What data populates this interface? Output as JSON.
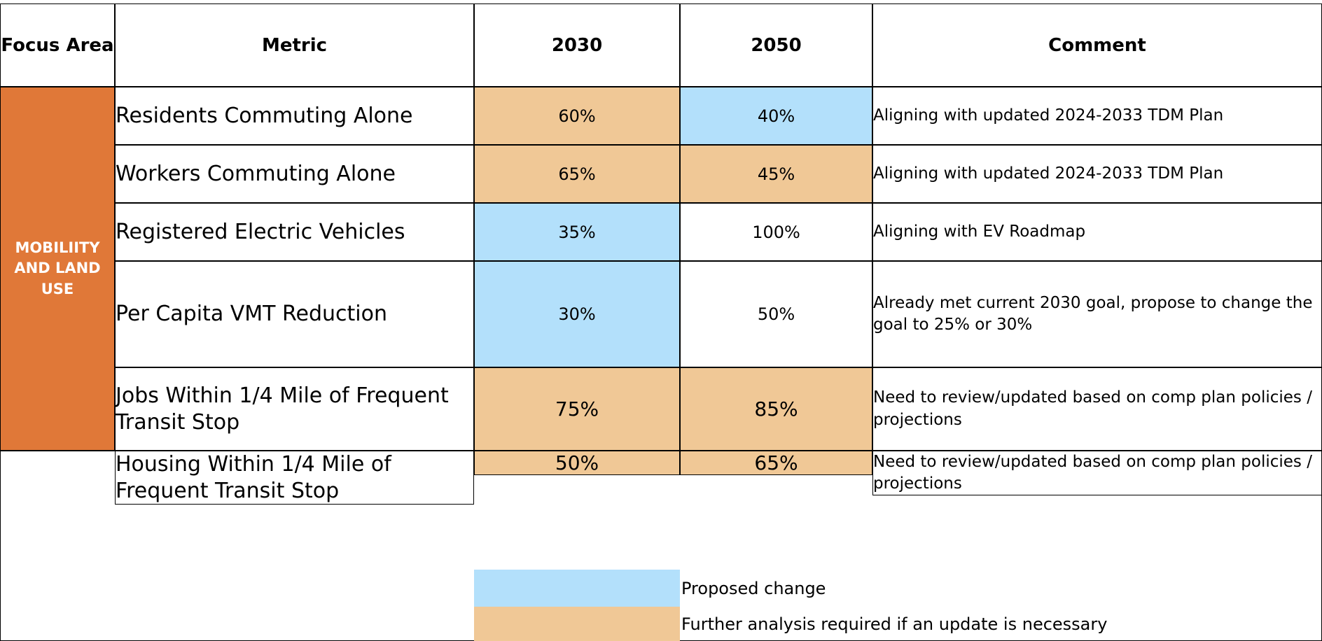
{
  "table": {
    "headers": [
      "Focus Area",
      "Metric",
      "2030",
      "2050",
      "Comment"
    ],
    "focus_area": "MOBILIITY AND LAND USE",
    "focus_color": "#e07838",
    "rows": [
      {
        "metric": "Residents Commuting Alone",
        "v2030": "60%",
        "v2050": "40%",
        "comment": "Aligning with updated 2024-2033 TDM Plan",
        "fill2030": "#f0c896",
        "fill2050": "#b3e0fb"
      },
      {
        "metric": "Workers Commuting Alone",
        "v2030": "65%",
        "v2050": "45%",
        "comment": "Aligning with updated 2024-2033 TDM Plan",
        "fill2030": "#f0c896",
        "fill2050": "#f0c896"
      },
      {
        "metric": "Registered Electric Vehicles",
        "v2030": "35%",
        "v2050": "100%",
        "comment": "Aligning with EV Roadmap",
        "fill2030": "#b3e0fb",
        "fill2050": "#ffffff"
      },
      {
        "metric": "Per Capita VMT Reduction",
        "v2030": "30%",
        "v2050": "50%",
        "comment": "Already met current 2030 goal, propose to change the goal to 25% or 30%",
        "fill2030": "#b3e0fb",
        "fill2050": "#ffffff"
      },
      {
        "metric": "Jobs Within 1/4 Mile of Frequent Transit Stop",
        "v2030": "75%",
        "v2050": "85%",
        "comment": "Need to review/updated based on comp plan policies / projections",
        "fill2030": "#f0c896",
        "fill2050": "#f0c896"
      },
      {
        "metric": "Housing Within 1/4 Mile of Frequent Transit Stop",
        "v2030": "50%",
        "v2050": "65%",
        "comment": "Need to review/updated based on comp plan policies / projections",
        "fill2030": "#f0c896",
        "fill2050": "#f0c896"
      }
    ]
  },
  "legend": [
    {
      "label": "Proposed change",
      "color": "#b3e0fb"
    },
    {
      "label": "Further analysis required if an update is necessary",
      "color": "#f0c896"
    }
  ]
}
